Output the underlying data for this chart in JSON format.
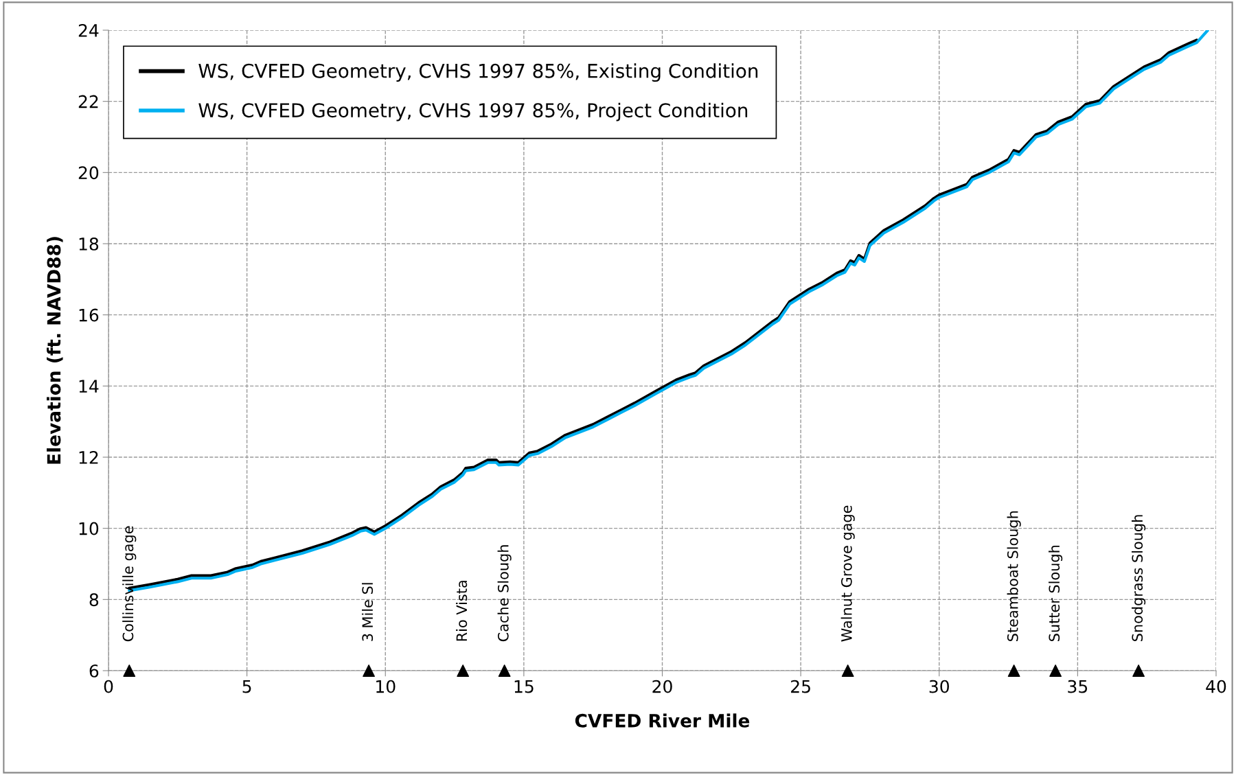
{
  "chart_data": {
    "type": "line",
    "xlabel": "CVFED River Mile",
    "ylabel": "Elevation (ft. NAVD88)",
    "xlim": [
      0,
      40
    ],
    "xticks": [
      0,
      5,
      10,
      15,
      20,
      25,
      30,
      35,
      40
    ],
    "ylim": [
      6,
      24
    ],
    "yticks": [
      6,
      8,
      10,
      12,
      14,
      16,
      18,
      20,
      22,
      24
    ],
    "grid": true,
    "legend": "top left",
    "marker": "none",
    "line_style": "solid",
    "x": [
      0.75,
      1.5,
      2.5,
      3.0,
      3.7,
      4.3,
      4.6,
      5.2,
      5.5,
      6.0,
      7.0,
      8.0,
      8.8,
      9.1,
      9.3,
      9.6,
      10.0,
      10.6,
      11.2,
      11.7,
      12.0,
      12.5,
      12.8,
      12.9,
      13.2,
      13.7,
      14.0,
      14.1,
      14.5,
      14.8,
      15.2,
      15.5,
      16.0,
      16.5,
      17.5,
      18.0,
      18.5,
      19.0,
      19.8,
      20.5,
      21.0,
      21.2,
      21.5,
      22.5,
      23.0,
      24.0,
      24.2,
      24.6,
      25.3,
      25.8,
      26.3,
      26.6,
      26.8,
      26.95,
      27.1,
      27.3,
      27.5,
      28.0,
      28.7,
      29.5,
      29.8,
      30.0,
      31.0,
      31.2,
      31.8,
      32.5,
      32.7,
      32.9,
      33.5,
      33.9,
      34.3,
      34.8,
      35.3,
      35.8,
      36.3,
      36.8,
      37.4,
      38.0,
      38.3,
      39.0,
      39.3,
      39.7
    ],
    "series": [
      {
        "name": "WS, CVFED Geometry, CVHS 1997 85%, Existing Condition",
        "color": "#000000",
        "values": [
          8.32,
          8.42,
          8.57,
          8.67,
          8.67,
          8.77,
          8.87,
          8.97,
          9.07,
          9.17,
          9.37,
          9.62,
          9.87,
          9.99,
          10.02,
          9.9,
          10.07,
          10.37,
          10.72,
          10.97,
          11.17,
          11.37,
          11.57,
          11.69,
          11.72,
          11.92,
          11.92,
          11.85,
          11.87,
          11.85,
          12.12,
          12.17,
          12.37,
          12.62,
          12.92,
          13.12,
          13.32,
          13.52,
          13.87,
          14.17,
          14.32,
          14.37,
          14.57,
          14.97,
          15.22,
          15.82,
          15.92,
          16.37,
          16.72,
          16.92,
          17.17,
          17.27,
          17.52,
          17.47,
          17.67,
          17.57,
          18.02,
          18.37,
          18.67,
          19.07,
          19.27,
          19.37,
          19.67,
          19.87,
          20.07,
          20.37,
          20.62,
          20.57,
          21.07,
          21.17,
          21.42,
          21.57,
          21.92,
          22.02,
          22.42,
          22.67,
          22.97,
          23.17,
          23.37,
          23.62,
          23.72,
          null
        ]
      },
      {
        "name": "WS, CVFED Geometry, CVHS 1997 85%, Project Condition",
        "color": "#00b0f0",
        "values": [
          8.25,
          8.35,
          8.5,
          8.6,
          8.6,
          8.7,
          8.8,
          8.9,
          9.0,
          9.1,
          9.3,
          9.55,
          9.8,
          9.92,
          9.95,
          9.83,
          10.0,
          10.3,
          10.65,
          10.9,
          11.1,
          11.3,
          11.5,
          11.62,
          11.65,
          11.85,
          11.85,
          11.78,
          11.8,
          11.78,
          12.05,
          12.1,
          12.3,
          12.55,
          12.85,
          13.05,
          13.25,
          13.45,
          13.8,
          14.1,
          14.25,
          14.3,
          14.5,
          14.9,
          15.15,
          15.75,
          15.85,
          16.3,
          16.65,
          16.85,
          17.1,
          17.2,
          17.45,
          17.4,
          17.6,
          17.5,
          17.95,
          18.3,
          18.6,
          19.0,
          19.2,
          19.3,
          19.6,
          19.8,
          20.0,
          20.3,
          20.55,
          20.5,
          21.0,
          21.1,
          21.35,
          21.5,
          21.85,
          21.95,
          22.35,
          22.6,
          22.9,
          23.1,
          23.3,
          23.55,
          23.65,
          24.0
        ]
      },
      {
        "type": "scatter",
        "marker": "triangle",
        "color": "#000000",
        "x": [
          0.75,
          9.4,
          12.8,
          14.3,
          26.7,
          32.7,
          34.2,
          37.2
        ],
        "values": [
          6,
          6,
          6,
          6,
          6,
          6,
          6,
          6
        ]
      }
    ],
    "annotations": [
      {
        "text": "Collinsville gage",
        "x": 0.75,
        "y": 6
      },
      {
        "text": "3 Mile Sl",
        "x": 9.4,
        "y": 6
      },
      {
        "text": "Rio Vista",
        "x": 12.8,
        "y": 6
      },
      {
        "text": "Cache Slough",
        "x": 14.3,
        "y": 6
      },
      {
        "text": "Walnut Grove gage",
        "x": 26.7,
        "y": 6
      },
      {
        "text": "Steamboat Slough",
        "x": 32.7,
        "y": 6
      },
      {
        "text": "Sutter Slough",
        "x": 34.2,
        "y": 6
      },
      {
        "text": "Snodgrass Slough",
        "x": 37.2,
        "y": 6
      }
    ]
  }
}
